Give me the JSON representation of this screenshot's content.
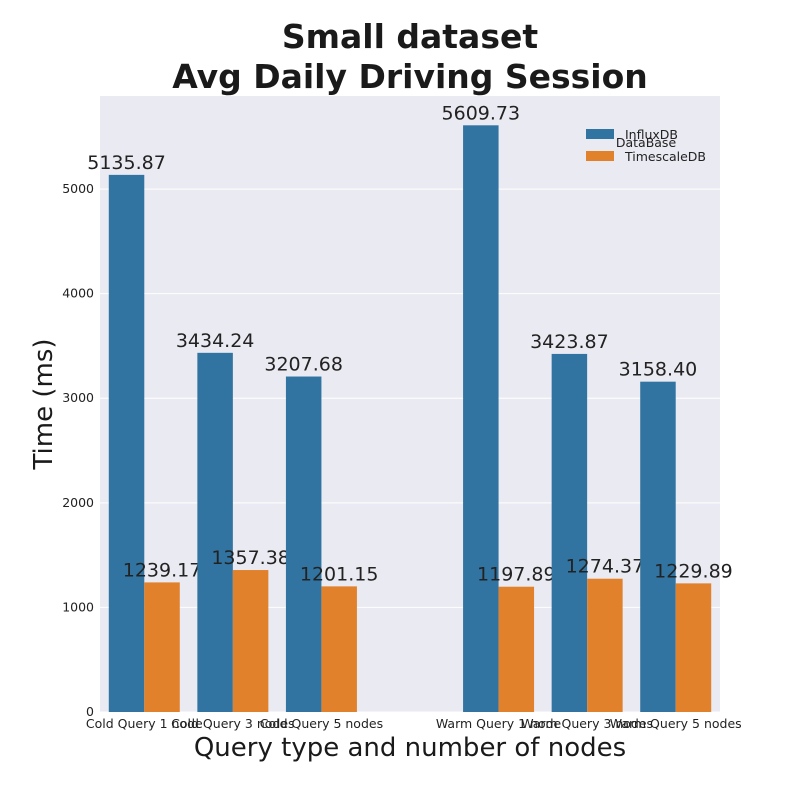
{
  "chart_data": {
    "type": "bar",
    "title_line1": "Small dataset",
    "title_line2": "Avg Daily Driving Session",
    "xlabel": "Query type and number of nodes",
    "ylabel": "Time (ms)",
    "categories": [
      "Cold Query 1 node",
      "Cold Query 3 nodes",
      "Cold Query 5 nodes",
      "",
      "Warm Query 1 node",
      "Warm Query 3 nodes",
      "Warm Query 5 nodes"
    ],
    "series": [
      {
        "name": "InfluxDB",
        "color": "#3274a1",
        "values": [
          5135.87,
          3434.24,
          3207.68,
          null,
          5609.73,
          3423.87,
          3158.4
        ],
        "labels": [
          "5135.87",
          "3434.24",
          "3207.68",
          "",
          "5609.73",
          "3423.87",
          "3158.40"
        ]
      },
      {
        "name": "TimescaleDB",
        "color": "#e1812c",
        "values": [
          1239.17,
          1357.38,
          1201.15,
          null,
          1197.89,
          1274.37,
          1229.89
        ],
        "labels": [
          "1239.17",
          "1357.38",
          "1201.15",
          "",
          "1197.89",
          "1274.37",
          "1229.89"
        ]
      }
    ],
    "ylim": [
      0,
      5890
    ],
    "yticks": [
      0,
      1000,
      2000,
      3000,
      4000,
      5000
    ],
    "grid": true,
    "legend": {
      "title": "DataBase",
      "placement": "top-right"
    },
    "plot_background": "#eaeaf2"
  }
}
